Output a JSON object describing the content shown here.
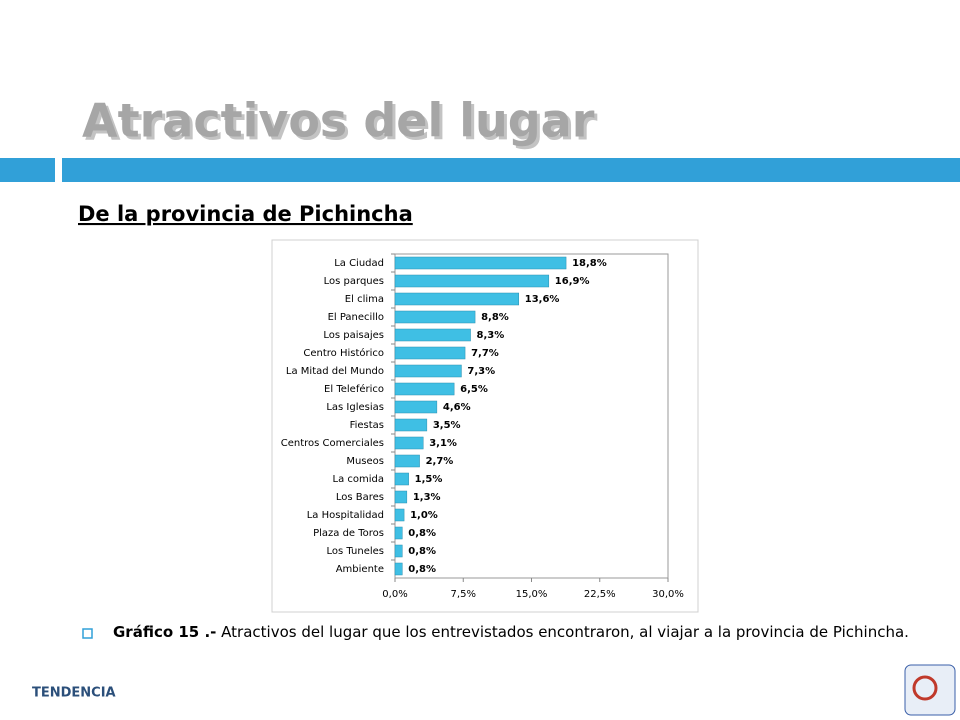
{
  "slide": {
    "title": "Atractivos del lugar",
    "subtitle": "De la provincia de Pichincha",
    "caption_label": "Gráfico 15 .-",
    "caption": "Atractivos del lugar que los entrevistados encontraron, al viajar a la provincia de Pichincha.",
    "logo": "TENDENCIA"
  },
  "chart_data": {
    "type": "hbar",
    "categories": [
      "La Ciudad",
      "Los parques",
      "El clima",
      "El Panecillo",
      "Los paisajes",
      "Centro Histórico",
      "La Mitad del Mundo",
      "El Teleférico",
      "Las Iglesias",
      "Fiestas",
      "Centros Comerciales",
      "Museos",
      "La comida",
      "Los Bares",
      "La Hospitalidad",
      "Plaza de Toros",
      "Los Tuneles",
      "Ambiente"
    ],
    "values": [
      18.8,
      16.9,
      13.6,
      8.8,
      8.3,
      7.7,
      7.3,
      6.5,
      4.6,
      3.5,
      3.1,
      2.7,
      1.5,
      1.3,
      1.0,
      0.8,
      0.8,
      0.8
    ],
    "value_labels": [
      "18,8%",
      "16,9%",
      "13,6%",
      "8,8%",
      "8,3%",
      "7,7%",
      "7,3%",
      "6,5%",
      "4,6%",
      "3,5%",
      "3,1%",
      "2,7%",
      "1,5%",
      "1,3%",
      "1,0%",
      "0,8%",
      "0,8%",
      "0,8%"
    ],
    "color": "#3fbfe4",
    "xlim": [
      0,
      30
    ],
    "xticks": [
      {
        "value": 0,
        "label": "0,0%"
      },
      {
        "value": 7.5,
        "label": "7,5%"
      },
      {
        "value": 15,
        "label": "15,0%"
      },
      {
        "value": 22.5,
        "label": "22,5%"
      },
      {
        "value": 30,
        "label": "30,0%"
      }
    ]
  }
}
